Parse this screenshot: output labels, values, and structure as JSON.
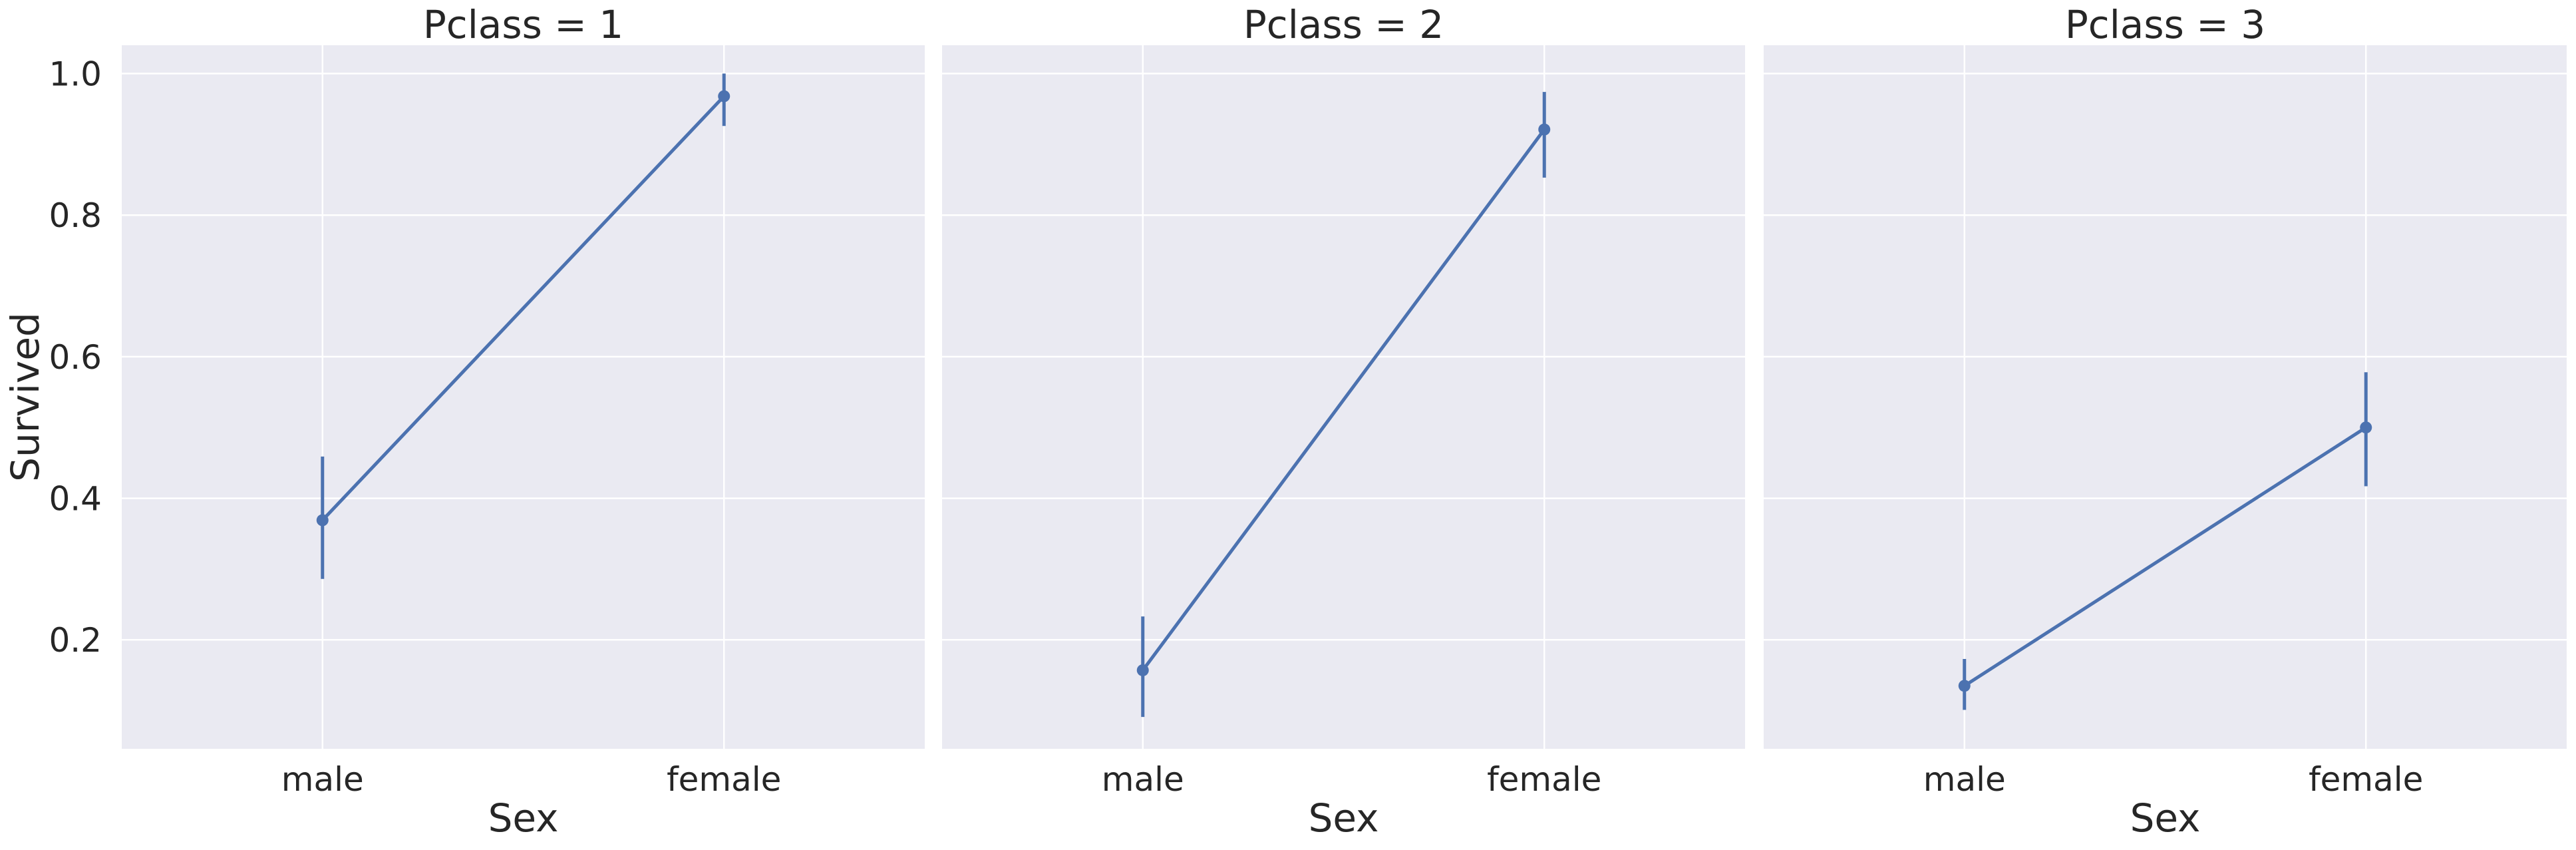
{
  "chart_data": [
    {
      "type": "line",
      "title": "Pclass = 1",
      "xlabel": "Sex",
      "ylabel": "Survived",
      "categories": [
        "male",
        "female"
      ],
      "values": [
        0.369,
        0.968
      ],
      "ci_low": [
        0.286,
        0.926
      ],
      "ci_high": [
        0.459,
        1.0
      ],
      "ylim": [
        0.046,
        1.04
      ],
      "yticks": [
        0.2,
        0.4,
        0.6,
        0.8,
        1.0
      ],
      "yticklabels": [
        "0.2",
        "0.4",
        "0.6",
        "0.8",
        "1.0"
      ],
      "grid": true,
      "color": "#4c72b0"
    },
    {
      "type": "line",
      "title": "Pclass = 2",
      "xlabel": "Sex",
      "ylabel": "",
      "categories": [
        "male",
        "female"
      ],
      "values": [
        0.157,
        0.921
      ],
      "ci_low": [
        0.091,
        0.853
      ],
      "ci_high": [
        0.233,
        0.974
      ],
      "ylim": [
        0.046,
        1.04
      ],
      "yticks": [
        0.2,
        0.4,
        0.6,
        0.8,
        1.0
      ],
      "yticklabels": [
        "",
        "",
        "",
        "",
        ""
      ],
      "grid": true,
      "color": "#4c72b0"
    },
    {
      "type": "line",
      "title": "Pclass = 3",
      "xlabel": "Sex",
      "ylabel": "",
      "categories": [
        "male",
        "female"
      ],
      "values": [
        0.135,
        0.5
      ],
      "ci_low": [
        0.101,
        0.417
      ],
      "ci_high": [
        0.173,
        0.578
      ],
      "ylim": [
        0.046,
        1.04
      ],
      "yticks": [
        0.2,
        0.4,
        0.6,
        0.8,
        1.0
      ],
      "yticklabels": [
        "",
        "",
        "",
        "",
        ""
      ],
      "grid": true,
      "color": "#4c72b0"
    }
  ]
}
